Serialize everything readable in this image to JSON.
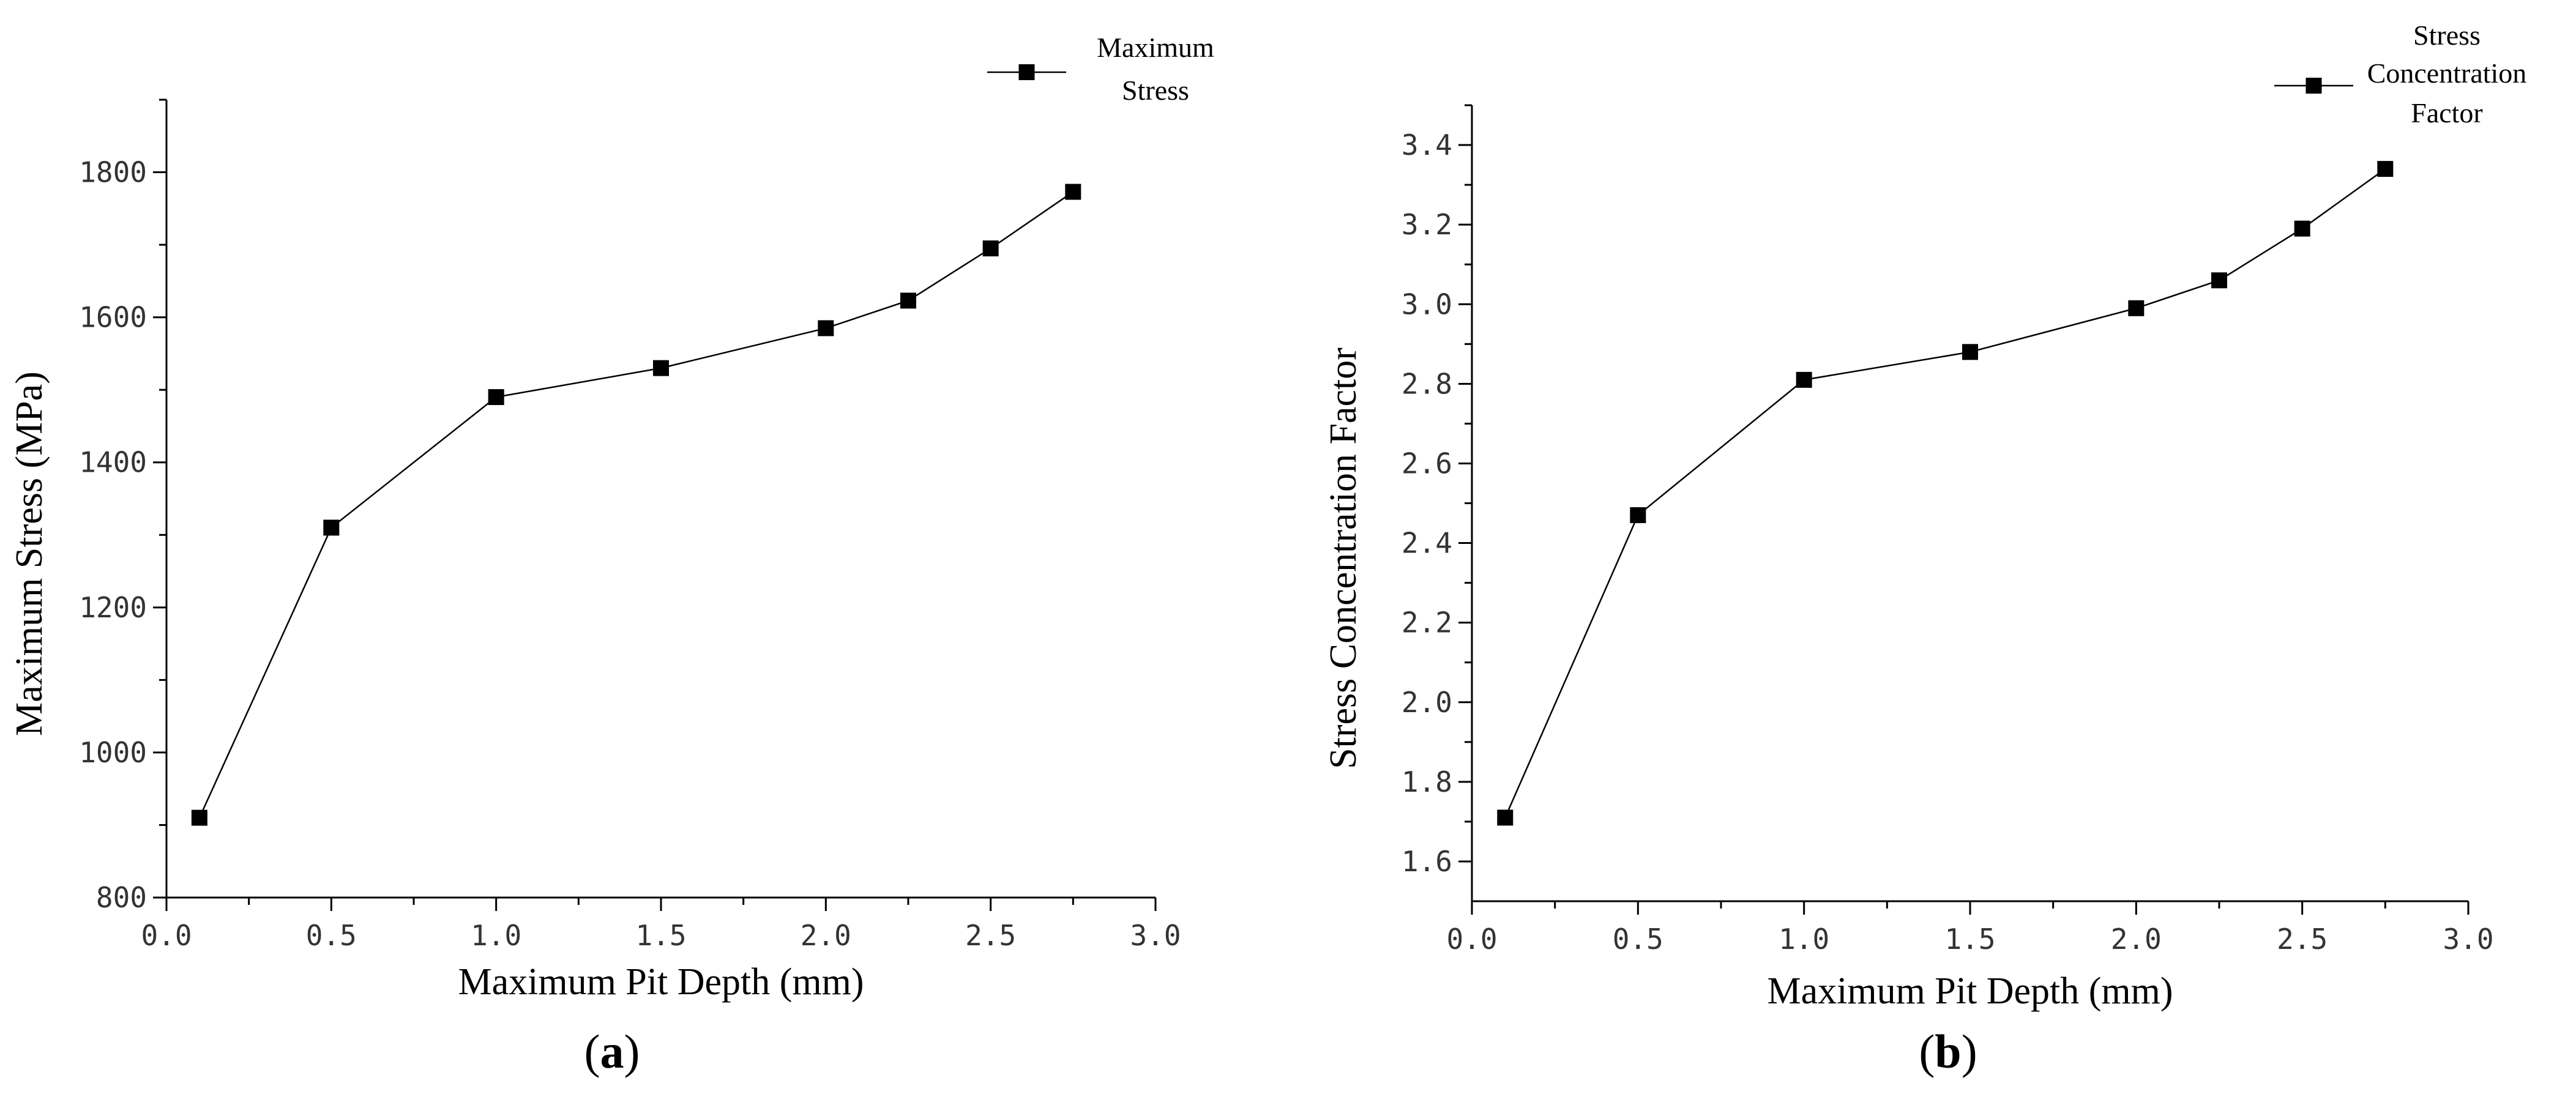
{
  "chart_data": [
    {
      "type": "line",
      "panel_label": "a",
      "title": "",
      "xlabel": "Maximum Pit Depth (mm)",
      "ylabel": "Maximum Stress (MPa)",
      "xlim": [
        0.0,
        3.0
      ],
      "ylim": [
        800,
        1900
      ],
      "xticks": [
        0.0,
        0.5,
        1.0,
        1.5,
        2.0,
        2.5,
        3.0
      ],
      "xtick_labels": [
        "0.0",
        "0.5",
        "1.0",
        "1.5",
        "2.0",
        "2.5",
        "3.0"
      ],
      "yticks": [
        800,
        1000,
        1200,
        1400,
        1600,
        1800
      ],
      "ytick_labels": [
        "800",
        "1000",
        "1200",
        "1400",
        "1600",
        "1800"
      ],
      "grid": false,
      "legend_position": "top-right",
      "series": [
        {
          "name": "Maximum Stress",
          "legend_lines": [
            "Maximum",
            "Stress"
          ],
          "marker": "square",
          "x": [
            0.1,
            0.5,
            1.0,
            1.5,
            2.0,
            2.25,
            2.5,
            2.75
          ],
          "y": [
            910,
            1310,
            1490,
            1530,
            1585,
            1623,
            1695,
            1773
          ]
        }
      ]
    },
    {
      "type": "line",
      "panel_label": "b",
      "title": "",
      "xlabel": "Maximum Pit Depth (mm)",
      "ylabel": "Stress Concentration Factor",
      "xlim": [
        0.0,
        3.0
      ],
      "ylim": [
        1.5,
        3.5
      ],
      "xticks": [
        0.0,
        0.5,
        1.0,
        1.5,
        2.0,
        2.5,
        3.0
      ],
      "xtick_labels": [
        "0.0",
        "0.5",
        "1.0",
        "1.5",
        "2.0",
        "2.5",
        "3.0"
      ],
      "yticks": [
        1.6,
        1.8,
        2.0,
        2.2,
        2.4,
        2.6,
        2.8,
        3.0,
        3.2,
        3.4
      ],
      "ytick_labels": [
        "1.6",
        "1.8",
        "2.0",
        "2.2",
        "2.4",
        "2.6",
        "2.8",
        "3.0",
        "3.2",
        "3.4"
      ],
      "grid": false,
      "legend_position": "top-right",
      "series": [
        {
          "name": "Stress Concentration Factor",
          "legend_lines": [
            "Stress",
            "Concentration",
            "Factor"
          ],
          "marker": "square",
          "x": [
            0.1,
            0.5,
            1.0,
            1.5,
            2.0,
            2.25,
            2.5,
            2.75
          ],
          "y": [
            1.71,
            2.47,
            2.81,
            2.88,
            2.99,
            3.06,
            3.19,
            3.34
          ]
        }
      ]
    }
  ]
}
